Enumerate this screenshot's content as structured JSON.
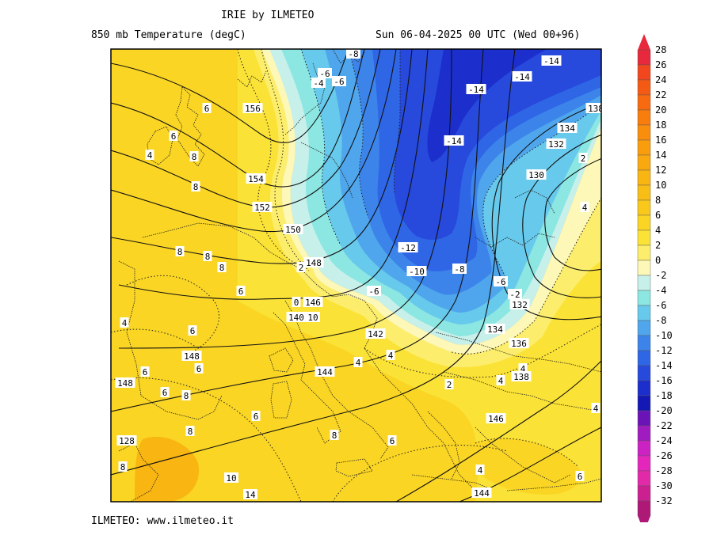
{
  "header": {
    "title": "IRIE by ILMETEO",
    "subtitle": "850 mb Temperature (degC)",
    "valid_time": "Sun 06-04-2025 00 UTC (Wed 00+96)"
  },
  "footer": {
    "credit": "ILMETEO: www.ilmeteo.it"
  },
  "colorbar": {
    "unit": "degC",
    "levels": [
      {
        "label": "28",
        "color": "#e8283c"
      },
      {
        "label": "26",
        "color": "#f2461e"
      },
      {
        "label": "24",
        "color": "#f55a14"
      },
      {
        "label": "22",
        "color": "#f76a0f"
      },
      {
        "label": "20",
        "color": "#f87d0c"
      },
      {
        "label": "18",
        "color": "#f98e0c"
      },
      {
        "label": "16",
        "color": "#f99d0d"
      },
      {
        "label": "14",
        "color": "#f9a90f"
      },
      {
        "label": "12",
        "color": "#f9b512"
      },
      {
        "label": "10",
        "color": "#f9be16"
      },
      {
        "label": "8",
        "color": "#f9c81b"
      },
      {
        "label": "6",
        "color": "#fad524"
      },
      {
        "label": "4",
        "color": "#fbe236"
      },
      {
        "label": "2",
        "color": "#fcee6c"
      },
      {
        "label": "0",
        "color": "#fdf8b8"
      },
      {
        "label": "-2",
        "color": "#c8f0ea"
      },
      {
        "label": "-4",
        "color": "#8ce6e2"
      },
      {
        "label": "-6",
        "color": "#67c9ec"
      },
      {
        "label": "-8",
        "color": "#4fa6ec"
      },
      {
        "label": "-10",
        "color": "#3c84ea"
      },
      {
        "label": "-12",
        "color": "#2f66e6"
      },
      {
        "label": "-14",
        "color": "#2749dc"
      },
      {
        "label": "-16",
        "color": "#1c2fcc"
      },
      {
        "label": "-18",
        "color": "#1418b4"
      },
      {
        "label": "-20",
        "color": "#6a14b8"
      },
      {
        "label": "-22",
        "color": "#a01cc0"
      },
      {
        "label": "-24",
        "color": "#cc22c4"
      },
      {
        "label": "-26",
        "color": "#e426bc"
      },
      {
        "label": "-28",
        "color": "#e22aa8"
      },
      {
        "label": "-30",
        "color": "#cc2090"
      },
      {
        "label": "-32",
        "color": "#b01878"
      }
    ]
  },
  "map": {
    "temperature_labels": [
      "-8",
      "-6",
      "-4",
      "-6",
      "-14",
      "-14",
      "-14",
      "-14",
      "-12",
      "-10",
      "-8",
      "-6",
      "-6",
      "-2",
      "2",
      "0",
      "2",
      "6",
      "6",
      "4",
      "8",
      "8",
      "8",
      "8",
      "6",
      "6",
      "4",
      "6",
      "6",
      "8",
      "6",
      "6",
      "8",
      "8",
      "6",
      "8",
      "4",
      "4",
      "4",
      "2",
      "4",
      "4",
      "4",
      "6",
      "10",
      "10",
      "14",
      "8",
      "4"
    ],
    "geopotential_labels": [
      "156",
      "154",
      "152",
      "150",
      "148",
      "146",
      "144",
      "146",
      "148",
      "144",
      "142",
      "132",
      "134",
      "136",
      "138",
      "140",
      "144",
      "138",
      "134",
      "132",
      "130",
      "128",
      "148",
      "146",
      "140",
      "144"
    ]
  }
}
